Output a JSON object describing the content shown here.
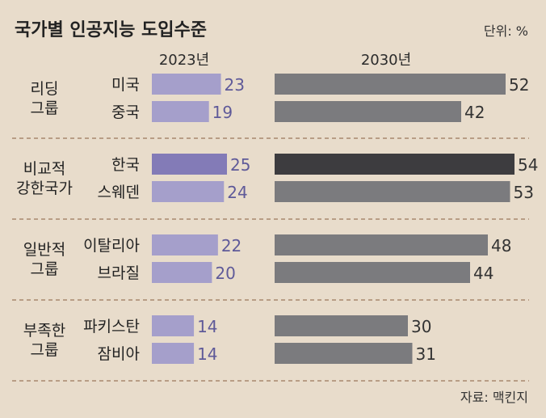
{
  "chart_data": {
    "type": "bar",
    "title": "국가별 인공지능 도입수준",
    "unit_label": "단위: %",
    "source": "자료: 맥킨지",
    "series": [
      {
        "name": "2023년",
        "color": "#a59fcb",
        "highlight_color": "#837bb7"
      },
      {
        "name": "2030년",
        "color": "#7b7b7e",
        "highlight_color": "#3d3c3f"
      }
    ],
    "groups": [
      {
        "label": "리딩 그룹",
        "label_lines": [
          "리딩",
          "그룹"
        ],
        "countries": [
          {
            "name": "미국",
            "v2023": 23,
            "v2030": 52,
            "highlight": false
          },
          {
            "name": "중국",
            "v2023": 19,
            "v2030": 42,
            "highlight": false
          }
        ]
      },
      {
        "label": "비교적 강한국가",
        "label_lines": [
          "비교적",
          "강한국가"
        ],
        "countries": [
          {
            "name": "한국",
            "v2023": 25,
            "v2030": 54,
            "highlight": true
          },
          {
            "name": "스웨덴",
            "v2023": 24,
            "v2030": 53,
            "highlight": false
          }
        ]
      },
      {
        "label": "일반적 그룹",
        "label_lines": [
          "일반적",
          "그룹"
        ],
        "countries": [
          {
            "name": "이탈리아",
            "v2023": 22,
            "v2030": 48,
            "highlight": false
          },
          {
            "name": "브라질",
            "v2023": 20,
            "v2030": 44,
            "highlight": false
          }
        ]
      },
      {
        "label": "부족한 그룹",
        "label_lines": [
          "부족한",
          "그룹"
        ],
        "countries": [
          {
            "name": "파키스탄",
            "v2023": 14,
            "v2030": 30,
            "highlight": false
          },
          {
            "name": "잠비아",
            "v2023": 14,
            "v2030": 31,
            "highlight": false
          }
        ]
      }
    ],
    "value_label_colors": {
      "2023": "#5f5a99",
      "2030": "#333333"
    },
    "divider_color": "#b89d85"
  }
}
